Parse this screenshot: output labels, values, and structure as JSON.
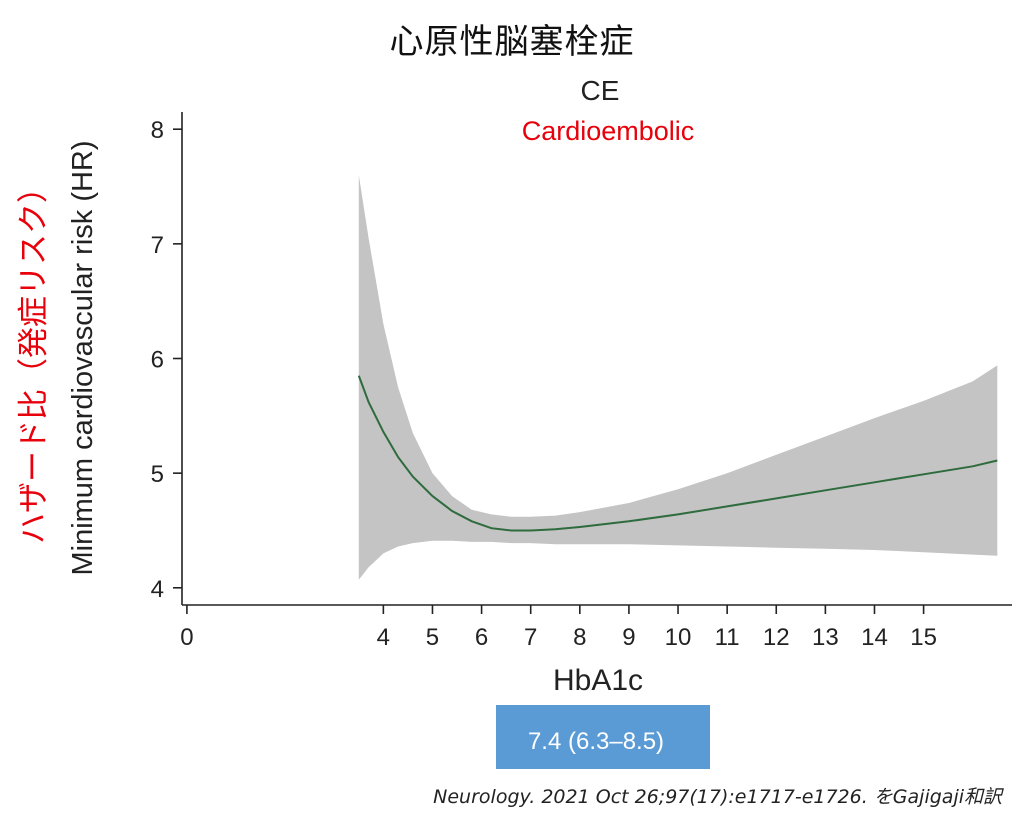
{
  "heading_jp": "心原性脳塞栓症",
  "citation": "Neurology. 2021 Oct 26;97(17):e1717-e1726. をGajigaji和訳",
  "colors": {
    "band": "#c4c4c4",
    "line": "#2e6b3d",
    "red_text": "#e8000b",
    "axis": "#222222",
    "box_fill": "#5b9bd5",
    "box_text": "#ffffff"
  },
  "chart_data": {
    "type": "line",
    "title": "CE",
    "subtitle": "Cardioembolic",
    "xlabel": "HbA1c",
    "ylabel": "Minimum cardiovascular risk (HR)",
    "ylabel_jp": "ハザード比（発症リスク）",
    "xlim": [
      -0.1,
      16.8
    ],
    "ylim": [
      3.85,
      8.15
    ],
    "x_ticks": [
      0,
      4,
      5,
      6,
      7,
      8,
      9,
      10,
      11,
      12,
      13,
      14,
      15
    ],
    "y_ticks": [
      4,
      5,
      6,
      7,
      8
    ],
    "grid": false,
    "series": [
      {
        "kind": "line",
        "x": [
          3.5,
          3.7,
          4.0,
          4.3,
          4.6,
          5.0,
          5.4,
          5.8,
          6.2,
          6.6,
          7.0,
          7.5,
          8.0,
          9.0,
          10.0,
          11.0,
          12.0,
          13.0,
          14.0,
          15.0,
          16.0,
          16.5
        ],
        "y": [
          5.85,
          5.62,
          5.36,
          5.14,
          4.97,
          4.8,
          4.67,
          4.58,
          4.52,
          4.5,
          4.5,
          4.51,
          4.53,
          4.58,
          4.64,
          4.71,
          4.78,
          4.85,
          4.92,
          4.99,
          5.06,
          5.11
        ]
      },
      {
        "kind": "band",
        "x": [
          3.5,
          3.7,
          4.0,
          4.3,
          4.6,
          5.0,
          5.4,
          5.8,
          6.2,
          6.6,
          7.0,
          7.5,
          8.0,
          9.0,
          10.0,
          11.0,
          12.0,
          13.0,
          14.0,
          15.0,
          16.0,
          16.5
        ],
        "lower": [
          4.07,
          4.18,
          4.3,
          4.36,
          4.39,
          4.41,
          4.41,
          4.4,
          4.4,
          4.39,
          4.39,
          4.38,
          4.38,
          4.38,
          4.37,
          4.36,
          4.35,
          4.34,
          4.33,
          4.31,
          4.29,
          4.28
        ],
        "upper": [
          7.6,
          7.05,
          6.3,
          5.75,
          5.35,
          5.0,
          4.8,
          4.68,
          4.64,
          4.62,
          4.62,
          4.63,
          4.66,
          4.74,
          4.86,
          5.0,
          5.16,
          5.32,
          5.48,
          5.63,
          5.8,
          5.94
        ]
      }
    ],
    "annotation_box": {
      "text": "7.4 (6.3–8.5)"
    }
  }
}
